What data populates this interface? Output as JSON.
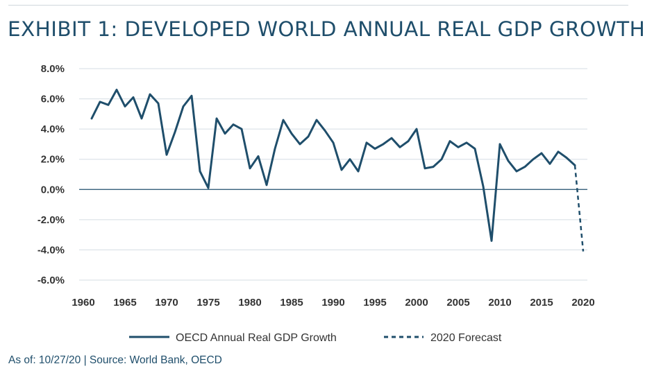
{
  "title": "EXHIBIT 1: DEVELOPED WORLD ANNUAL REAL GDP GROWTH",
  "footnote": "As of: 10/27/20 | Source: World Bank, OECD",
  "colors": {
    "line": "#1f4e6b",
    "grid": "#d5dde3",
    "zero": "#1f4e6b"
  },
  "chart_data": {
    "type": "line",
    "title": "EXHIBIT 1: DEVELOPED WORLD ANNUAL REAL GDP GROWTH",
    "xlabel": "",
    "ylabel": "",
    "xlim": [
      1960,
      2020
    ],
    "ylim": [
      -6.0,
      8.0
    ],
    "grid": true,
    "legend_position": "bottom",
    "x_ticks": [
      1960,
      1965,
      1970,
      1975,
      1980,
      1985,
      1990,
      1995,
      2000,
      2005,
      2010,
      2015,
      2020
    ],
    "y_ticks": [
      -6.0,
      -4.0,
      -2.0,
      0.0,
      2.0,
      4.0,
      6.0,
      8.0
    ],
    "y_tick_labels": [
      "-6.0%",
      "-4.0%",
      "-2.0%",
      "0.0%",
      "2.0%",
      "4.0%",
      "6.0%",
      "8.0%"
    ],
    "series": [
      {
        "name": "OECD Annual Real GDP Growth",
        "style": "solid",
        "x": [
          1961,
          1962,
          1963,
          1964,
          1965,
          1966,
          1967,
          1968,
          1969,
          1970,
          1971,
          1972,
          1973,
          1974,
          1975,
          1976,
          1977,
          1978,
          1979,
          1980,
          1981,
          1982,
          1983,
          1984,
          1985,
          1986,
          1987,
          1988,
          1989,
          1990,
          1991,
          1992,
          1993,
          1994,
          1995,
          1996,
          1997,
          1998,
          1999,
          2000,
          2001,
          2002,
          2003,
          2004,
          2005,
          2006,
          2007,
          2008,
          2009,
          2010,
          2011,
          2012,
          2013,
          2014,
          2015,
          2016,
          2017,
          2018,
          2019
        ],
        "values": [
          4.7,
          5.8,
          5.6,
          6.6,
          5.5,
          6.1,
          4.7,
          6.3,
          5.7,
          2.3,
          3.8,
          5.5,
          6.2,
          1.2,
          0.1,
          4.7,
          3.7,
          4.3,
          4.0,
          1.4,
          2.2,
          0.3,
          2.7,
          4.6,
          3.7,
          3.0,
          3.5,
          4.6,
          3.9,
          3.1,
          1.3,
          2.0,
          1.2,
          3.1,
          2.7,
          3.0,
          3.4,
          2.8,
          3.2,
          4.0,
          1.4,
          1.5,
          2.0,
          3.2,
          2.8,
          3.1,
          2.7,
          0.2,
          -3.4,
          3.0,
          1.9,
          1.2,
          1.5,
          2.0,
          2.4,
          1.7,
          2.5,
          2.1,
          1.6
        ]
      },
      {
        "name": "2020 Forecast",
        "style": "dashed",
        "x": [
          2019,
          2020
        ],
        "values": [
          1.6,
          -4.1
        ]
      }
    ]
  }
}
